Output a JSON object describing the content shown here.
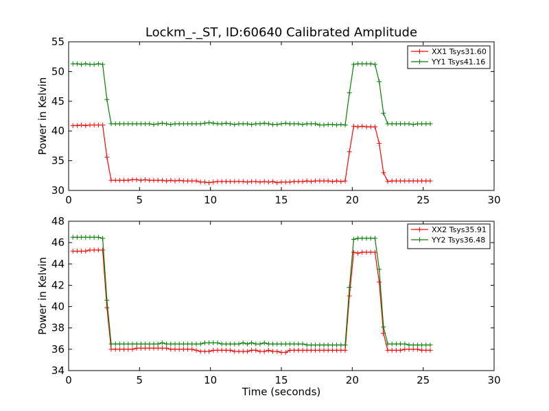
{
  "figure": {
    "title": "Lockm_-_ST, ID:60640 Calibrated Amplitude",
    "xlabel": "Time (seconds)"
  },
  "chart_data": [
    {
      "type": "line",
      "title": "Lockm_-_ST, ID:60640 Calibrated Amplitude",
      "xlabel": "",
      "ylabel": "Power in Kelvin",
      "xlim": [
        0,
        30
      ],
      "ylim": [
        30,
        55
      ],
      "xticks": [
        "0",
        "5",
        "10",
        "15",
        "20",
        "25",
        "30"
      ],
      "yticks": [
        "30",
        "35",
        "40",
        "45",
        "50",
        "55"
      ],
      "grid": false,
      "legend_position": "top-right",
      "series": [
        {
          "name": "XX1 Tsys31.60",
          "color": "#ff0000",
          "x": [
            0.3,
            0.6,
            0.9,
            1.2,
            1.5,
            1.8,
            2.1,
            2.4,
            2.7,
            3.0,
            3.3,
            3.6,
            3.9,
            4.2,
            4.5,
            4.8,
            5.1,
            5.4,
            5.7,
            6.0,
            6.3,
            6.6,
            6.9,
            7.2,
            7.5,
            7.8,
            8.1,
            8.4,
            8.7,
            9.0,
            9.3,
            9.6,
            9.9,
            10.2,
            10.5,
            10.8,
            11.1,
            11.4,
            11.7,
            12.0,
            12.3,
            12.6,
            12.9,
            13.2,
            13.5,
            13.8,
            14.1,
            14.4,
            14.7,
            15.0,
            15.3,
            15.6,
            15.9,
            16.2,
            16.5,
            16.8,
            17.1,
            17.4,
            17.7,
            18.0,
            18.3,
            18.6,
            18.9,
            19.2,
            19.5,
            19.8,
            20.1,
            20.4,
            20.7,
            21.0,
            21.3,
            21.6,
            21.9,
            22.2,
            22.5,
            22.8,
            23.1,
            23.4,
            23.7,
            24.0,
            24.3,
            24.6,
            24.9,
            25.2,
            25.5
          ],
          "values": [
            40.9,
            40.9,
            41.0,
            40.9,
            41.0,
            41.0,
            41.0,
            41.0,
            35.6,
            31.7,
            31.7,
            31.7,
            31.7,
            31.7,
            31.8,
            31.8,
            31.7,
            31.8,
            31.7,
            31.7,
            31.7,
            31.7,
            31.6,
            31.7,
            31.6,
            31.7,
            31.6,
            31.6,
            31.6,
            31.6,
            31.4,
            31.4,
            31.3,
            31.4,
            31.5,
            31.5,
            31.5,
            31.5,
            31.5,
            31.5,
            31.5,
            31.4,
            31.5,
            31.5,
            31.4,
            31.5,
            31.4,
            31.5,
            31.3,
            31.4,
            31.4,
            31.4,
            31.5,
            31.5,
            31.5,
            31.6,
            31.5,
            31.6,
            31.6,
            31.6,
            31.6,
            31.5,
            31.6,
            31.5,
            31.6,
            36.5,
            40.8,
            40.7,
            40.8,
            40.7,
            40.7,
            40.7,
            37.9,
            33.0,
            31.5,
            31.6,
            31.6,
            31.6,
            31.6,
            31.6,
            31.6,
            31.6,
            31.6,
            31.6,
            31.6
          ]
        },
        {
          "name": "YY1 Tsys41.16",
          "color": "#008000",
          "x": [
            0.3,
            0.6,
            0.9,
            1.2,
            1.5,
            1.8,
            2.1,
            2.4,
            2.7,
            3.0,
            3.3,
            3.6,
            3.9,
            4.2,
            4.5,
            4.8,
            5.1,
            5.4,
            5.7,
            6.0,
            6.3,
            6.6,
            6.9,
            7.2,
            7.5,
            7.8,
            8.1,
            8.4,
            8.7,
            9.0,
            9.3,
            9.6,
            9.9,
            10.2,
            10.5,
            10.8,
            11.1,
            11.4,
            11.7,
            12.0,
            12.3,
            12.6,
            12.9,
            13.2,
            13.5,
            13.8,
            14.1,
            14.4,
            14.7,
            15.0,
            15.3,
            15.6,
            15.9,
            16.2,
            16.5,
            16.8,
            17.1,
            17.4,
            17.7,
            18.0,
            18.3,
            18.6,
            18.9,
            19.2,
            19.5,
            19.8,
            20.1,
            20.4,
            20.7,
            21.0,
            21.3,
            21.6,
            21.9,
            22.2,
            22.5,
            22.8,
            23.1,
            23.4,
            23.7,
            24.0,
            24.3,
            24.6,
            24.9,
            25.2,
            25.5
          ],
          "values": [
            51.3,
            51.3,
            51.2,
            51.3,
            51.2,
            51.2,
            51.3,
            51.2,
            45.3,
            41.2,
            41.2,
            41.2,
            41.2,
            41.2,
            41.2,
            41.2,
            41.2,
            41.2,
            41.2,
            41.1,
            41.2,
            41.3,
            41.2,
            41.1,
            41.2,
            41.2,
            41.2,
            41.2,
            41.2,
            41.2,
            41.2,
            41.3,
            41.4,
            41.3,
            41.2,
            41.2,
            41.3,
            41.2,
            41.1,
            41.2,
            41.2,
            41.2,
            41.1,
            41.2,
            41.2,
            41.3,
            41.2,
            41.1,
            41.1,
            41.2,
            41.3,
            41.2,
            41.2,
            41.2,
            41.1,
            41.2,
            41.2,
            41.2,
            41.0,
            41.0,
            41.1,
            41.1,
            41.0,
            41.1,
            41.0,
            46.4,
            51.2,
            51.3,
            51.3,
            51.3,
            51.3,
            51.2,
            48.3,
            43.0,
            41.2,
            41.2,
            41.2,
            41.2,
            41.2,
            41.2,
            41.1,
            41.2,
            41.2,
            41.2,
            41.2
          ]
        }
      ]
    },
    {
      "type": "line",
      "title": "",
      "xlabel": "Time (seconds)",
      "ylabel": "Power in Kelvin",
      "xlim": [
        0,
        30
      ],
      "ylim": [
        34,
        48
      ],
      "xticks": [
        "0",
        "5",
        "10",
        "15",
        "20",
        "25",
        "30"
      ],
      "yticks": [
        "34",
        "36",
        "38",
        "40",
        "42",
        "44",
        "46",
        "48"
      ],
      "grid": false,
      "legend_position": "top-right",
      "series": [
        {
          "name": "XX2 Tsys35.91",
          "color": "#ff0000",
          "x": [
            0.3,
            0.6,
            0.9,
            1.2,
            1.5,
            1.8,
            2.1,
            2.4,
            2.7,
            3.0,
            3.3,
            3.6,
            3.9,
            4.2,
            4.5,
            4.8,
            5.1,
            5.4,
            5.7,
            6.0,
            6.3,
            6.6,
            6.9,
            7.2,
            7.5,
            7.8,
            8.1,
            8.4,
            8.7,
            9.0,
            9.3,
            9.6,
            9.9,
            10.2,
            10.5,
            10.8,
            11.1,
            11.4,
            11.7,
            12.0,
            12.3,
            12.6,
            12.9,
            13.2,
            13.5,
            13.8,
            14.1,
            14.4,
            14.7,
            15.0,
            15.3,
            15.6,
            15.9,
            16.2,
            16.5,
            16.8,
            17.1,
            17.4,
            17.7,
            18.0,
            18.3,
            18.6,
            18.9,
            19.2,
            19.5,
            19.8,
            20.1,
            20.4,
            20.7,
            21.0,
            21.3,
            21.6,
            21.9,
            22.2,
            22.5,
            22.8,
            23.1,
            23.4,
            23.7,
            24.0,
            24.3,
            24.6,
            24.9,
            25.2,
            25.5
          ],
          "values": [
            45.2,
            45.2,
            45.2,
            45.2,
            45.3,
            45.3,
            45.3,
            45.3,
            39.9,
            36.0,
            36.0,
            36.0,
            36.0,
            36.0,
            36.0,
            36.1,
            36.1,
            36.1,
            36.1,
            36.1,
            36.1,
            36.1,
            36.1,
            36.0,
            36.0,
            36.0,
            36.0,
            36.0,
            36.0,
            35.9,
            35.8,
            35.8,
            35.8,
            35.9,
            35.9,
            35.9,
            35.9,
            35.9,
            35.8,
            35.8,
            35.8,
            35.8,
            35.9,
            35.9,
            35.8,
            35.8,
            35.9,
            35.8,
            35.8,
            35.7,
            35.7,
            35.9,
            35.9,
            35.9,
            35.9,
            35.9,
            35.9,
            35.9,
            35.9,
            35.9,
            35.9,
            35.9,
            35.9,
            35.9,
            35.9,
            41.0,
            45.1,
            45.0,
            45.1,
            45.1,
            45.1,
            45.1,
            42.3,
            37.5,
            35.9,
            35.9,
            35.9,
            35.9,
            36.0,
            36.0,
            36.0,
            36.0,
            35.9,
            35.9,
            35.9
          ]
        },
        {
          "name": "YY2 Tsys36.48",
          "color": "#008000",
          "x": [
            0.3,
            0.6,
            0.9,
            1.2,
            1.5,
            1.8,
            2.1,
            2.4,
            2.7,
            3.0,
            3.3,
            3.6,
            3.9,
            4.2,
            4.5,
            4.8,
            5.1,
            5.4,
            5.7,
            6.0,
            6.3,
            6.6,
            6.9,
            7.2,
            7.5,
            7.8,
            8.1,
            8.4,
            8.7,
            9.0,
            9.3,
            9.6,
            9.9,
            10.2,
            10.5,
            10.8,
            11.1,
            11.4,
            11.7,
            12.0,
            12.3,
            12.6,
            12.9,
            13.2,
            13.5,
            13.8,
            14.1,
            14.4,
            14.7,
            15.0,
            15.3,
            15.6,
            15.9,
            16.2,
            16.5,
            16.8,
            17.1,
            17.4,
            17.7,
            18.0,
            18.3,
            18.6,
            18.9,
            19.2,
            19.5,
            19.8,
            20.1,
            20.4,
            20.7,
            21.0,
            21.3,
            21.6,
            21.9,
            22.2,
            22.5,
            22.8,
            23.1,
            23.4,
            23.7,
            24.0,
            24.3,
            24.6,
            24.9,
            25.2,
            25.5
          ],
          "values": [
            46.5,
            46.5,
            46.5,
            46.5,
            46.5,
            46.5,
            46.5,
            46.4,
            40.6,
            36.5,
            36.5,
            36.5,
            36.5,
            36.5,
            36.5,
            36.5,
            36.5,
            36.5,
            36.5,
            36.5,
            36.5,
            36.6,
            36.5,
            36.5,
            36.5,
            36.5,
            36.5,
            36.5,
            36.5,
            36.5,
            36.5,
            36.6,
            36.6,
            36.6,
            36.6,
            36.5,
            36.5,
            36.5,
            36.5,
            36.5,
            36.6,
            36.5,
            36.6,
            36.5,
            36.5,
            36.6,
            36.5,
            36.5,
            36.5,
            36.5,
            36.5,
            36.5,
            36.5,
            36.5,
            36.5,
            36.4,
            36.4,
            36.4,
            36.4,
            36.4,
            36.4,
            36.4,
            36.4,
            36.4,
            36.4,
            41.8,
            46.3,
            46.4,
            46.4,
            46.4,
            46.4,
            46.4,
            43.5,
            38.1,
            36.5,
            36.5,
            36.5,
            36.5,
            36.5,
            36.4,
            36.4,
            36.4,
            36.4,
            36.4,
            36.4
          ]
        }
      ]
    }
  ]
}
